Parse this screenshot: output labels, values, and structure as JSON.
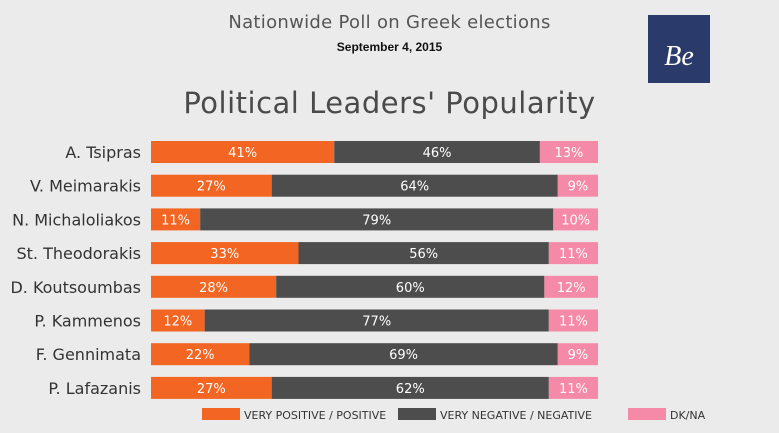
{
  "header": {
    "title": "Nationwide Poll on Greek elections",
    "date": "September 4, 2015"
  },
  "logo": {
    "text": "Be",
    "background": "#2a3a6b"
  },
  "chart_data": {
    "type": "bar",
    "stacked": true,
    "orientation": "horizontal",
    "title": "Political Leaders' Popularity",
    "categories": [
      "A. Tsipras",
      "V. Meimarakis",
      "N. Michaloliakos",
      "St. Theodorakis",
      "D. Koutsoumbas",
      "P. Kammenos",
      "F. Gennimata",
      "P. Lafazanis"
    ],
    "series": [
      {
        "name": "VERY POSITIVE / POSITIVE",
        "color": "#f26522",
        "values": [
          41,
          27,
          11,
          33,
          28,
          12,
          22,
          27
        ]
      },
      {
        "name": "VERY NEGATIVE / NEGATIVE",
        "color": "#4d4d4d",
        "values": [
          46,
          64,
          79,
          56,
          60,
          77,
          69,
          62
        ]
      },
      {
        "name": "DK/NA",
        "color": "#f58aa8",
        "values": [
          13,
          9,
          10,
          11,
          12,
          11,
          9,
          11
        ]
      }
    ],
    "value_suffix": "%",
    "legend_position": "bottom"
  }
}
